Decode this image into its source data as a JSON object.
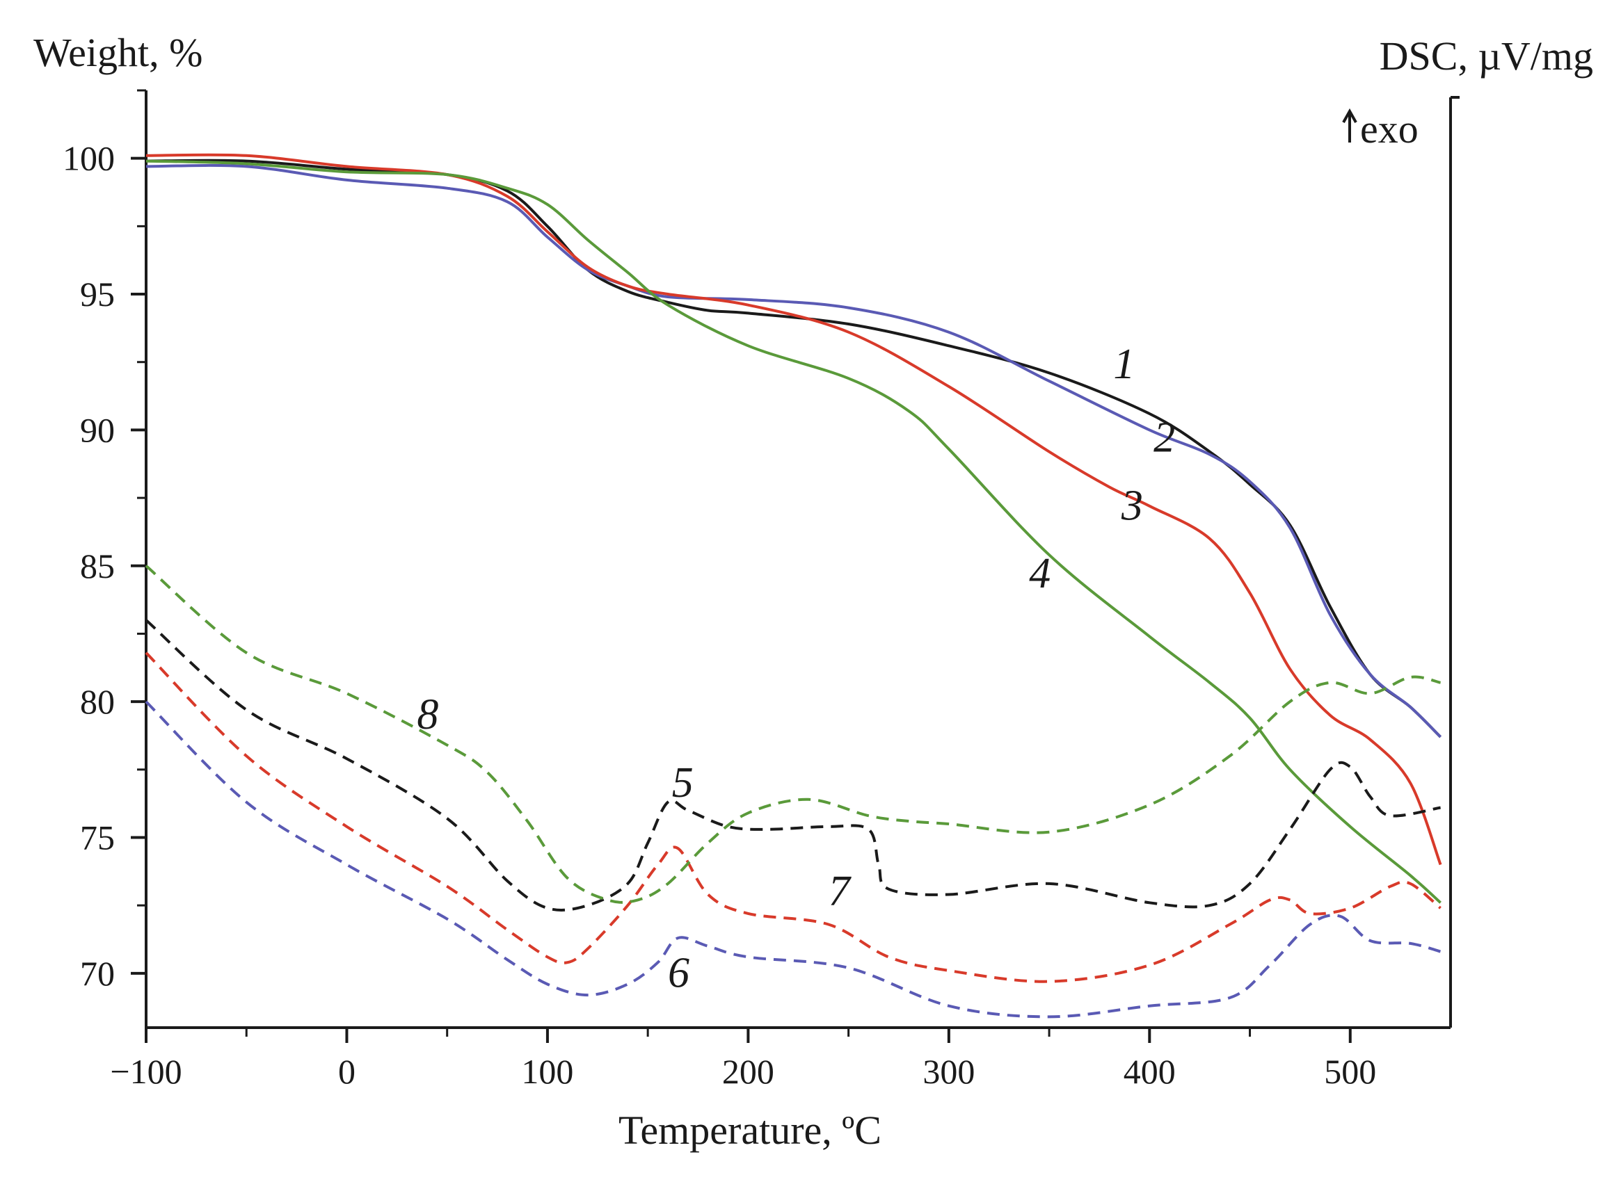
{
  "chart_data": {
    "type": "line",
    "title": "",
    "xlabel": "Temperature, ºC",
    "ylabel": "Weight, %",
    "ylabel_right": "DSC, µV/mg",
    "exo_label": "exo",
    "xlim": [
      -100,
      550
    ],
    "ylim": [
      68,
      102.5
    ],
    "xticks": [
      -100,
      0,
      100,
      200,
      300,
      400,
      500
    ],
    "xtick_labels": [
      "−100",
      "0",
      "100",
      "200",
      "300",
      "400",
      "500"
    ],
    "yticks": [
      70,
      75,
      80,
      85,
      90,
      95,
      100
    ],
    "ytick_labels": [
      "70",
      "75",
      "80",
      "85",
      "90",
      "95",
      "100"
    ],
    "grid": false,
    "legend": "none",
    "series": [
      {
        "name": "1",
        "label": "1",
        "kind": "TG",
        "color": "#1a1a1a",
        "dashed": false,
        "label_at": [
          382,
          91.9
        ],
        "x": [
          -100,
          -50,
          0,
          50,
          80,
          100,
          120,
          140,
          160,
          180,
          200,
          250,
          300,
          350,
          400,
          430,
          450,
          470,
          490,
          510,
          530,
          545
        ],
        "y": [
          99.9,
          99.9,
          99.6,
          99.4,
          98.8,
          97.5,
          95.9,
          95.1,
          94.7,
          94.4,
          94.3,
          93.9,
          93.1,
          92.1,
          90.6,
          89.2,
          88.0,
          86.5,
          83.5,
          81.0,
          79.8,
          78.7
        ]
      },
      {
        "name": "2",
        "label": "2",
        "kind": "TG",
        "color": "#5a5ab4",
        "dashed": false,
        "label_at": [
          402,
          89.2
        ],
        "x": [
          -100,
          -50,
          0,
          50,
          80,
          100,
          120,
          140,
          160,
          200,
          250,
          300,
          350,
          400,
          430,
          450,
          470,
          490,
          510,
          530,
          545
        ],
        "y": [
          99.7,
          99.7,
          99.2,
          98.9,
          98.4,
          97.1,
          95.9,
          95.3,
          94.9,
          94.8,
          94.5,
          93.6,
          91.8,
          90.0,
          89.1,
          88.1,
          86.4,
          83.2,
          81.0,
          79.8,
          78.7
        ]
      },
      {
        "name": "3",
        "label": "3",
        "kind": "TG",
        "color": "#d83a2a",
        "dashed": false,
        "label_at": [
          386,
          86.7
        ],
        "x": [
          -100,
          -50,
          0,
          50,
          80,
          100,
          120,
          140,
          160,
          200,
          250,
          300,
          350,
          380,
          400,
          430,
          450,
          470,
          490,
          510,
          530,
          545
        ],
        "y": [
          100.1,
          100.1,
          99.7,
          99.4,
          98.6,
          97.3,
          96.0,
          95.3,
          95.0,
          94.6,
          93.6,
          91.6,
          89.2,
          87.9,
          87.2,
          86.0,
          84.0,
          81.2,
          79.5,
          78.6,
          77.0,
          74.0
        ]
      },
      {
        "name": "4",
        "label": "4",
        "kind": "TG",
        "color": "#5a9a3a",
        "dashed": false,
        "label_at": [
          340,
          84.2
        ],
        "x": [
          -100,
          -50,
          0,
          50,
          80,
          100,
          120,
          140,
          160,
          200,
          250,
          280,
          300,
          350,
          400,
          430,
          450,
          470,
          500,
          530,
          545
        ],
        "y": [
          99.9,
          99.8,
          99.5,
          99.4,
          98.9,
          98.3,
          97.0,
          95.8,
          94.6,
          93.1,
          91.9,
          90.7,
          89.3,
          85.4,
          82.4,
          80.7,
          79.4,
          77.5,
          75.4,
          73.6,
          72.6
        ]
      },
      {
        "name": "5",
        "label": "5",
        "kind": "DSC",
        "color": "#1a1a1a",
        "dashed": true,
        "label_at": [
          162,
          76.5
        ],
        "x": [
          -100,
          -50,
          0,
          50,
          80,
          100,
          120,
          140,
          150,
          160,
          170,
          190,
          210,
          240,
          260,
          265,
          270,
          300,
          350,
          400,
          430,
          450,
          470,
          490,
          500,
          510,
          520,
          545
        ],
        "y": [
          83.0,
          79.7,
          77.9,
          75.7,
          73.4,
          72.4,
          72.5,
          73.3,
          74.8,
          76.3,
          76.0,
          75.4,
          75.3,
          75.4,
          75.3,
          74.0,
          73.1,
          72.9,
          73.3,
          72.6,
          72.5,
          73.3,
          75.3,
          77.5,
          77.6,
          76.5,
          75.8,
          76.1
        ]
      },
      {
        "name": "6",
        "label": "6",
        "kind": "DSC",
        "color": "#5a5ab4",
        "dashed": true,
        "label_at": [
          160,
          69.5
        ],
        "x": [
          -100,
          -50,
          0,
          50,
          80,
          100,
          120,
          140,
          155,
          165,
          180,
          200,
          250,
          300,
          350,
          400,
          440,
          460,
          480,
          495,
          510,
          530,
          545
        ],
        "y": [
          80.0,
          76.3,
          74.0,
          72.0,
          70.5,
          69.6,
          69.2,
          69.6,
          70.4,
          71.3,
          71.0,
          70.6,
          70.2,
          68.8,
          68.4,
          68.8,
          69.1,
          70.3,
          71.8,
          72.1,
          71.2,
          71.1,
          70.8
        ]
      },
      {
        "name": "7",
        "label": "7",
        "kind": "DSC",
        "color": "#d83a2a",
        "dashed": true,
        "label_at": [
          240,
          72.5
        ],
        "x": [
          -100,
          -50,
          0,
          50,
          80,
          100,
          110,
          120,
          140,
          155,
          165,
          180,
          200,
          240,
          270,
          300,
          350,
          400,
          440,
          460,
          470,
          480,
          500,
          520,
          530,
          545
        ],
        "y": [
          81.8,
          78.0,
          75.4,
          73.2,
          71.6,
          70.6,
          70.4,
          70.9,
          72.5,
          74.0,
          74.6,
          72.9,
          72.2,
          71.8,
          70.6,
          70.1,
          69.7,
          70.3,
          71.8,
          72.7,
          72.7,
          72.2,
          72.4,
          73.2,
          73.3,
          72.4
        ]
      },
      {
        "name": "8",
        "label": "8",
        "kind": "DSC",
        "color": "#5a9a3a",
        "dashed": true,
        "label_at": [
          35,
          79.0
        ],
        "x": [
          -100,
          -50,
          0,
          50,
          70,
          90,
          110,
          130,
          145,
          160,
          180,
          200,
          230,
          260,
          280,
          300,
          350,
          400,
          440,
          470,
          490,
          510,
          530,
          545
        ],
        "y": [
          85.0,
          81.8,
          80.3,
          78.4,
          77.4,
          75.6,
          73.5,
          72.7,
          72.7,
          73.3,
          74.8,
          75.9,
          76.4,
          75.8,
          75.6,
          75.5,
          75.2,
          76.2,
          78.0,
          80.0,
          80.7,
          80.3,
          80.9,
          80.7
        ]
      }
    ]
  }
}
